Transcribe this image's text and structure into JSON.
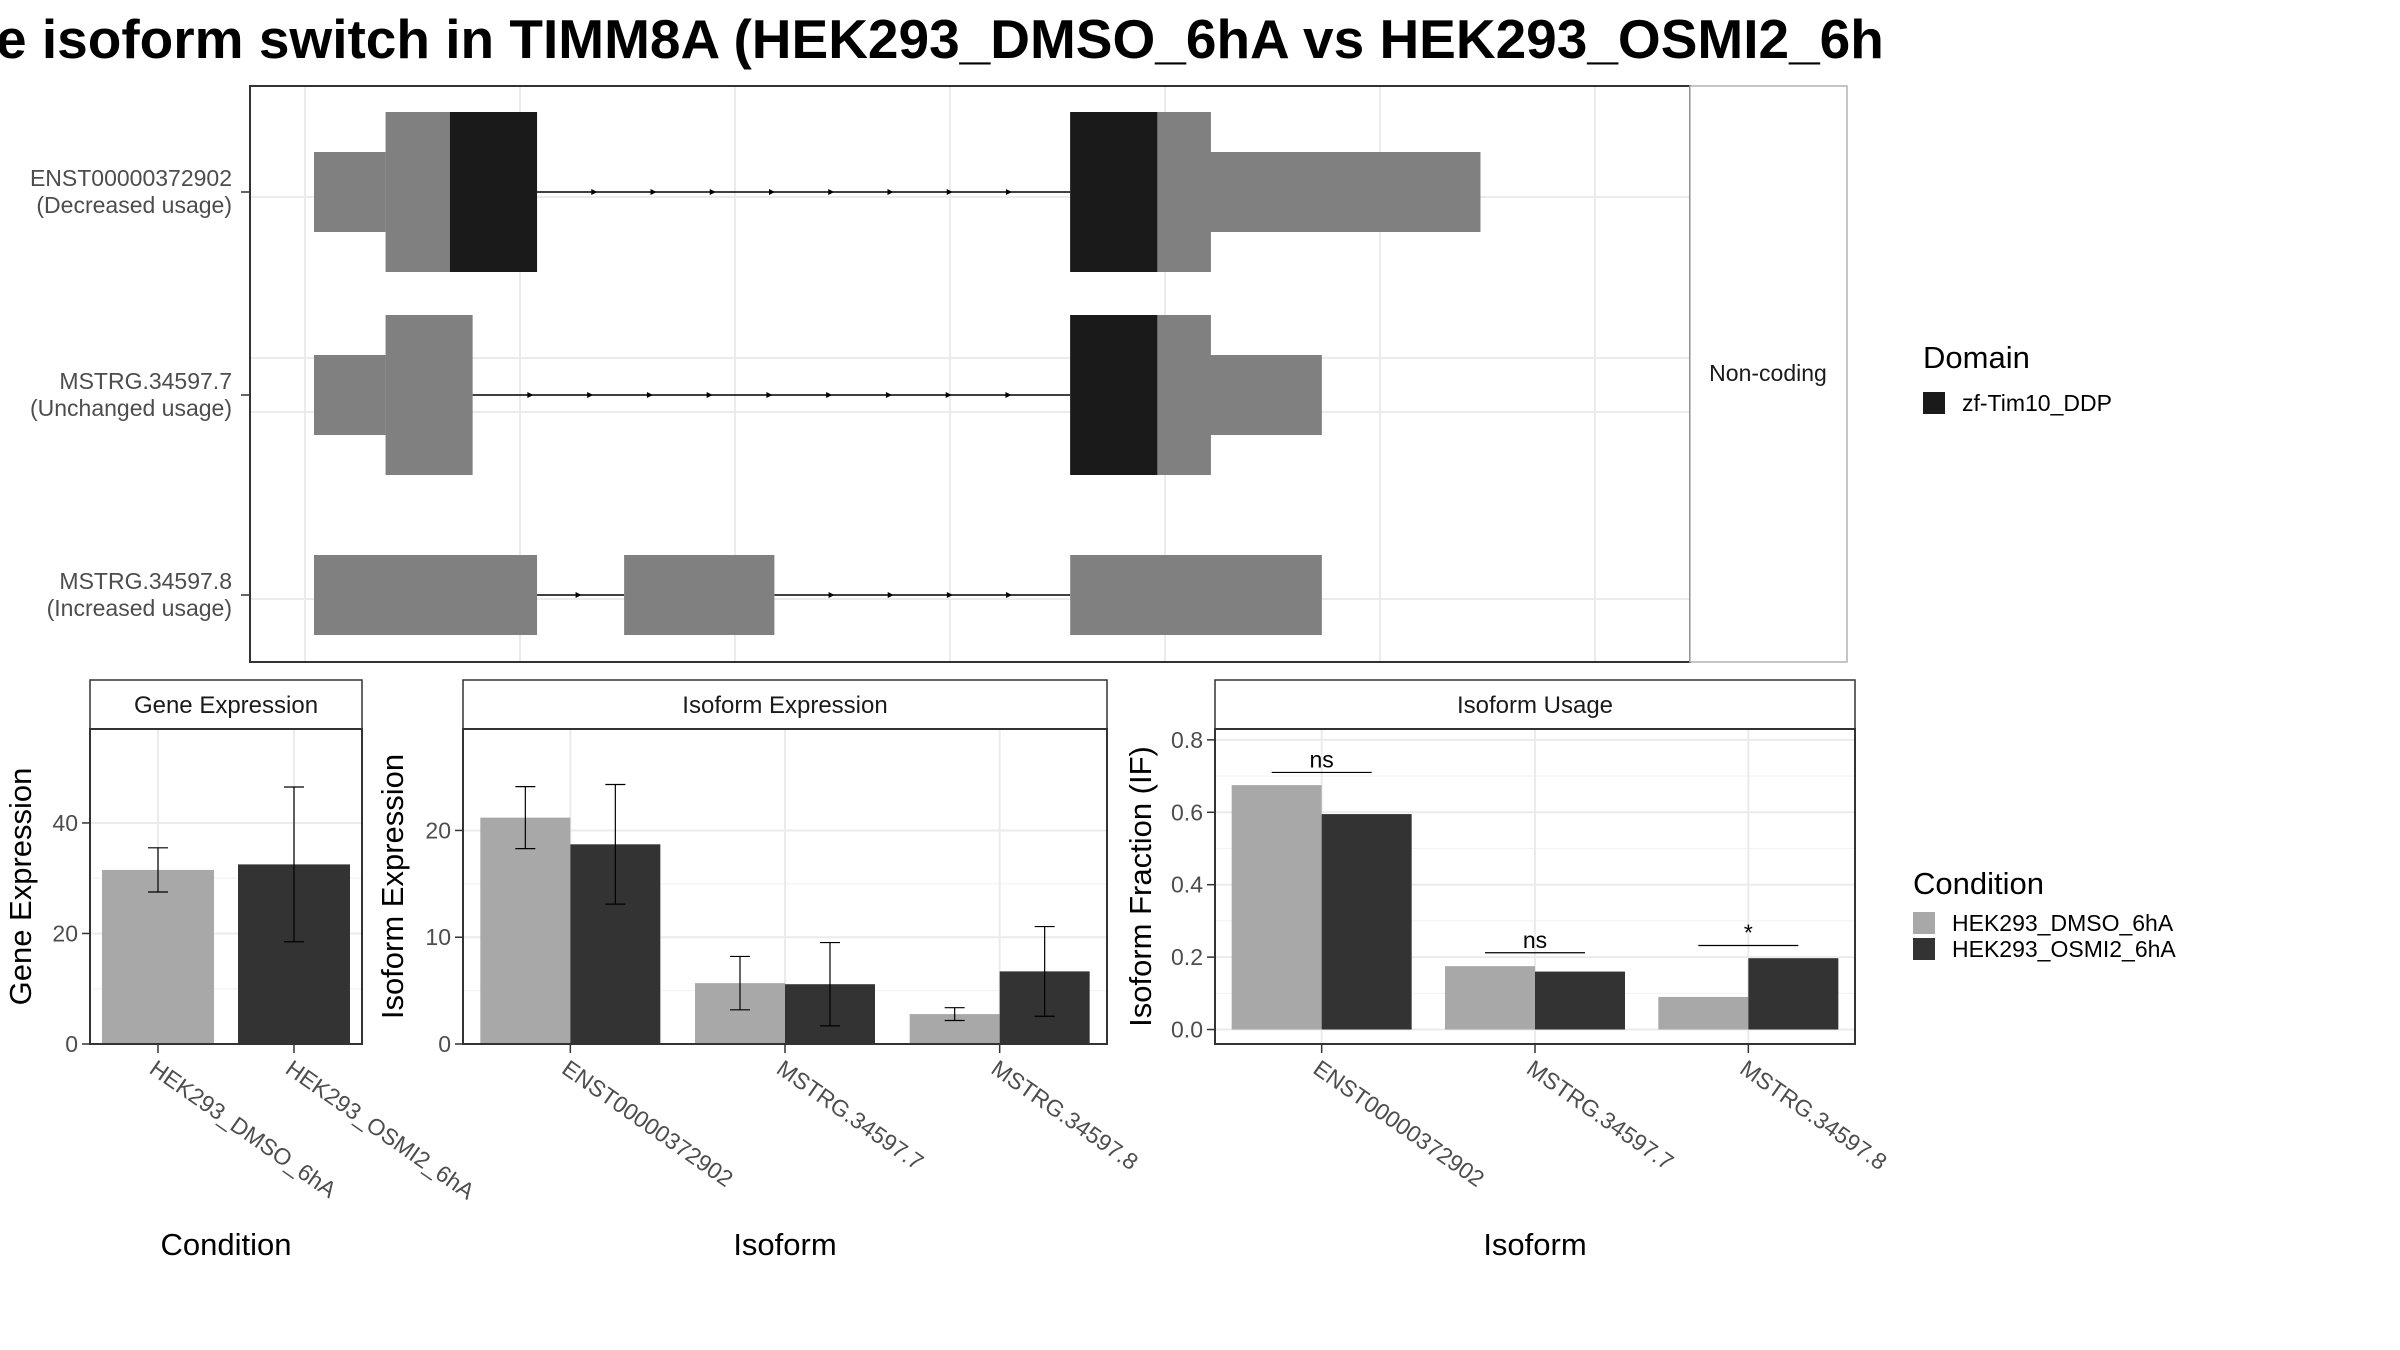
{
  "title": "e isoform switch in TIMM8A (HEK293_DMSO_6hA vs HEK293_OSMI2_6h",
  "colors": {
    "exon": "#808080",
    "domain": "#1a1a1a",
    "dmso": "#a8a8a8",
    "osmi2": "#333333",
    "panel_border": "#333333",
    "grid": "#ebebeb",
    "strip_fill": "#ffffff"
  },
  "chart_data": [
    {
      "type": "gene-structure",
      "panel_label": "Non-coding",
      "legend_title": "Domain",
      "legend_items": [
        {
          "label": "zf-Tim10_DDP",
          "color": "#1a1a1a"
        }
      ],
      "xlim": [
        0,
        1100
      ],
      "transcripts": [
        {
          "id": "ENST00000372902",
          "usage": "(Decreased usage)",
          "utr_segments": [
            [
              0,
              60
            ],
            [
              678,
              978
            ]
          ],
          "cds_segments": [
            [
              60,
              187
            ],
            [
              634,
              752
            ]
          ],
          "domain_segments": [
            [
              114,
              187
            ],
            [
              634,
              707
            ]
          ],
          "introns": [
            [
              187,
              634
            ]
          ]
        },
        {
          "id": "MSTRG.34597.7",
          "usage": "(Unchanged usage)",
          "utr_segments": [
            [
              0,
              60
            ],
            [
              678,
              845
            ]
          ],
          "cds_segments": [
            [
              60,
              133
            ],
            [
              634,
              752
            ]
          ],
          "domain_segments": [
            [
              634,
              707
            ]
          ],
          "introns": [
            [
              133,
              634
            ]
          ]
        },
        {
          "id": "MSTRG.34597.8",
          "usage": "(Increased usage)",
          "utr_segments": [
            [
              0,
              187
            ],
            [
              260,
              386
            ],
            [
              634,
              845
            ]
          ],
          "cds_segments": [],
          "domain_segments": [],
          "introns": [
            [
              187,
              260
            ],
            [
              386,
              634
            ]
          ]
        }
      ]
    },
    {
      "type": "bar",
      "strip_title": "Gene Expression",
      "xlabel": "Condition",
      "ylabel": "Gene Expression",
      "ylim": [
        0,
        57
      ],
      "yticks": [
        0,
        20,
        40
      ],
      "categories": [
        "HEK293_DMSO_6hA",
        "HEK293_OSMI2_6hA"
      ],
      "values": [
        31.5,
        32.5
      ],
      "error_low": [
        27.5,
        18.5
      ],
      "error_high": [
        35.5,
        46.5
      ]
    },
    {
      "type": "bar",
      "strip_title": "Isoform Expression",
      "xlabel": "Isoform",
      "ylabel": "Isoform Expression",
      "ylim": [
        0,
        29.5
      ],
      "yticks": [
        0,
        10,
        20
      ],
      "categories": [
        "ENST00000372902",
        "MSTRG.34597.7",
        "MSTRG.34597.8"
      ],
      "series": [
        {
          "name": "HEK293_DMSO_6hA",
          "values": [
            21.2,
            5.7,
            2.8
          ],
          "error_low": [
            18.3,
            3.2,
            2.2
          ],
          "error_high": [
            24.1,
            8.2,
            3.4
          ]
        },
        {
          "name": "HEK293_OSMI2_6hA",
          "values": [
            18.7,
            5.6,
            6.8
          ],
          "error_low": [
            13.1,
            1.7,
            2.6
          ],
          "error_high": [
            24.3,
            9.5,
            11.0
          ]
        }
      ]
    },
    {
      "type": "bar",
      "strip_title": "Isoform Usage",
      "xlabel": "Isoform",
      "ylabel": "Isoform Fraction (IF)",
      "ylim": [
        -0.04,
        0.83
      ],
      "yticks": [
        "0.0",
        "0.2",
        "0.4",
        "0.6",
        "0.8"
      ],
      "categories": [
        "ENST00000372902",
        "MSTRG.34597.7",
        "MSTRG.34597.8"
      ],
      "series": [
        {
          "name": "HEK293_DMSO_6hA",
          "values": [
            0.675,
            0.175,
            0.09
          ]
        },
        {
          "name": "HEK293_OSMI2_6hA",
          "values": [
            0.595,
            0.16,
            0.197
          ]
        }
      ],
      "significance": [
        {
          "category": "ENST00000372902",
          "label": "ns",
          "y": 0.71
        },
        {
          "category": "MSTRG.34597.7",
          "label": "ns",
          "y": 0.212
        },
        {
          "category": "MSTRG.34597.8",
          "label": "*",
          "y": 0.232
        }
      ],
      "legend_title": "Condition",
      "legend_items": [
        {
          "label": "HEK293_DMSO_6hA",
          "color": "#a8a8a8"
        },
        {
          "label": "HEK293_OSMI2_6hA",
          "color": "#333333"
        }
      ]
    }
  ]
}
